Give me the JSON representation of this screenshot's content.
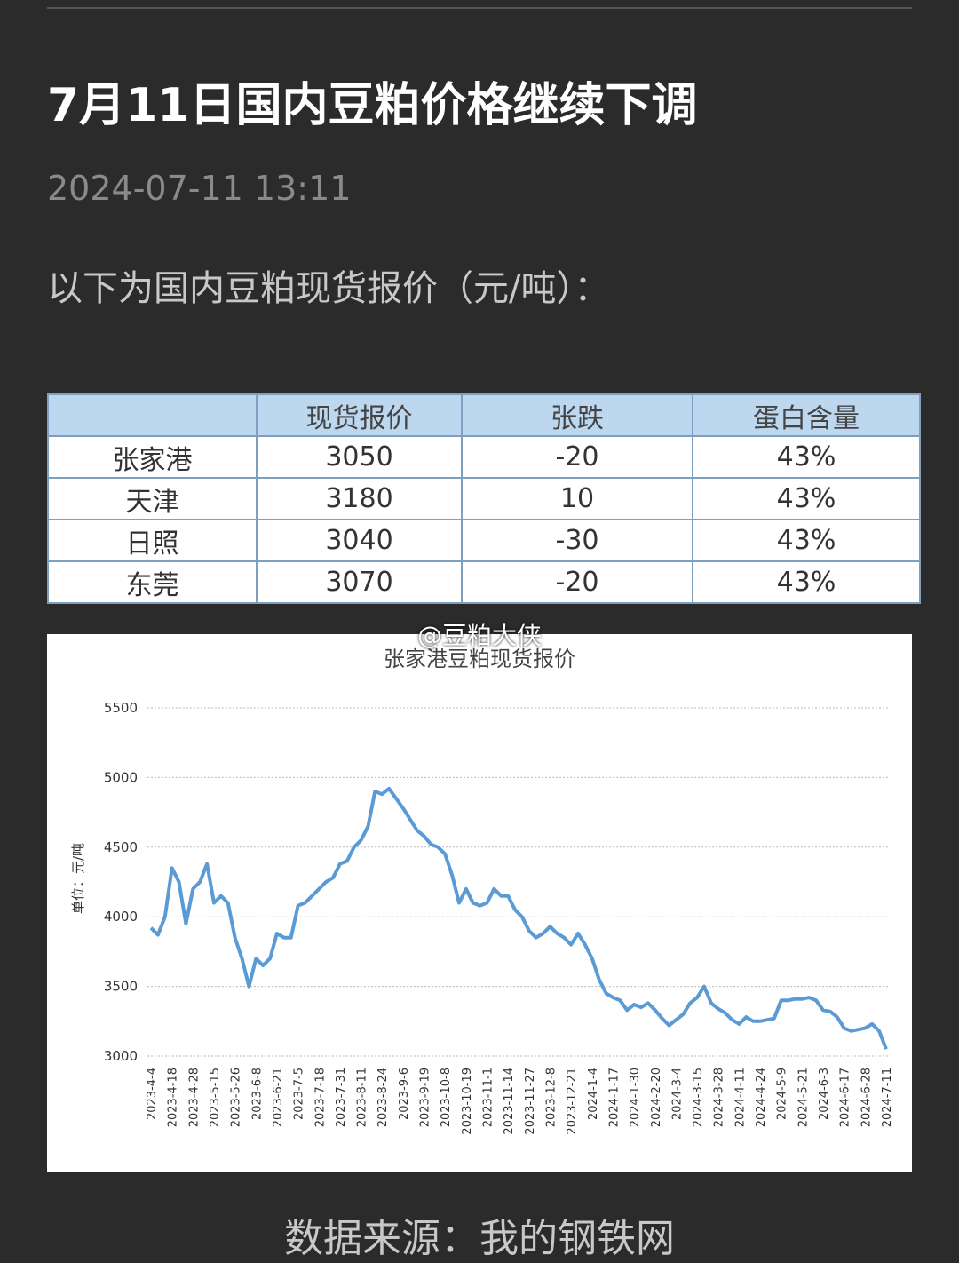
{
  "header": {
    "title": "7月11日国内豆粕价格继续下调",
    "date": "2024-07-11 13:11"
  },
  "intro": "以下为国内豆粕现货报价（元/吨）：",
  "table": {
    "columns": [
      "现货报价",
      "张跌",
      "蛋白含量"
    ],
    "rows": [
      [
        "张家港",
        "3050",
        "-20",
        "43%"
      ],
      [
        "天津",
        "3180",
        "10",
        "43%"
      ],
      [
        "日照",
        "3040",
        "-30",
        "43%"
      ],
      [
        "东莞",
        "3070",
        "-20",
        "43%"
      ]
    ]
  },
  "watermark": "@豆粕大侠",
  "chart_data": {
    "type": "line",
    "title": "张家港豆粕现货报价",
    "ylabel": "单位：元/吨",
    "color": "#5b9bd5",
    "grid": true,
    "ylim": [
      3000,
      5500
    ],
    "yticks": [
      3000,
      3500,
      4000,
      4500,
      5000,
      5500
    ],
    "categories": [
      "2023-4-4",
      null,
      null,
      "2023-4-18",
      null,
      null,
      "2023-4-28",
      null,
      null,
      "2023-5-15",
      null,
      null,
      "2023-5-26",
      null,
      null,
      "2023-6-8",
      null,
      null,
      "2023-6-21",
      null,
      null,
      "2023-7-5",
      null,
      null,
      "2023-7-18",
      null,
      null,
      "2023-7-31",
      null,
      null,
      "2023-8-11",
      null,
      null,
      "2023-8-24",
      null,
      null,
      "2023-9-6",
      null,
      null,
      "2023-9-19",
      null,
      null,
      "2023-10-8",
      null,
      null,
      "2023-10-19",
      null,
      null,
      "2023-11-1",
      null,
      null,
      "2023-11-14",
      null,
      null,
      "2023-11-27",
      null,
      null,
      "2023-12-8",
      null,
      null,
      "2023-12-21",
      null,
      null,
      "2024-1-4",
      null,
      null,
      "2024-1-17",
      null,
      null,
      "2024-1-30",
      null,
      null,
      "2024-2-20",
      null,
      null,
      "2024-3-4",
      null,
      null,
      "2024-3-15",
      null,
      null,
      "2024-3-28",
      null,
      null,
      "2024-4-11",
      null,
      null,
      "2024-4-24",
      null,
      null,
      "2024-5-9",
      null,
      null,
      "2024-5-21",
      null,
      null,
      "2024-6-3",
      null,
      null,
      "2024-6-17",
      null,
      null,
      "2024-6-28",
      null,
      null,
      "2024-7-11"
    ],
    "values": [
      3920,
      3870,
      4000,
      4350,
      4250,
      3950,
      4200,
      4250,
      4380,
      4100,
      4150,
      4100,
      3850,
      3700,
      3500,
      3700,
      3650,
      3700,
      3880,
      3850,
      3850,
      4080,
      4100,
      4150,
      4200,
      4250,
      4280,
      4380,
      4400,
      4500,
      4550,
      4650,
      4900,
      4880,
      4920,
      4850,
      4780,
      4700,
      4620,
      4580,
      4520,
      4500,
      4450,
      4300,
      4100,
      4200,
      4100,
      4080,
      4100,
      4200,
      4150,
      4150,
      4050,
      4000,
      3900,
      3850,
      3880,
      3930,
      3880,
      3850,
      3800,
      3880,
      3800,
      3700,
      3550,
      3450,
      3420,
      3400,
      3330,
      3370,
      3350,
      3380,
      3330,
      3270,
      3220,
      3260,
      3300,
      3380,
      3420,
      3500,
      3380,
      3340,
      3310,
      3260,
      3230,
      3280,
      3250,
      3250,
      3260,
      3270,
      3400,
      3400,
      3410,
      3410,
      3420,
      3400,
      3330,
      3320,
      3280,
      3200,
      3180,
      3190,
      3200,
      3230,
      3180,
      3050
    ]
  },
  "source": "数据来源：我的钢铁网"
}
